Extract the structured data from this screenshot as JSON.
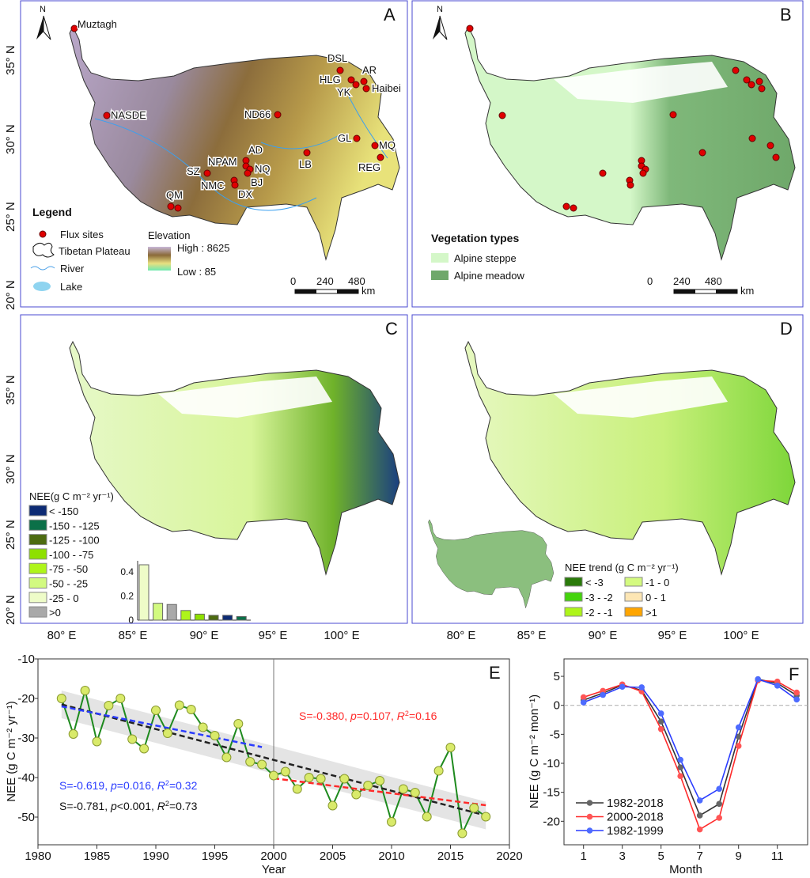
{
  "colors": {
    "frame": "#3b3bd6",
    "flux": "#e00000",
    "steppe": "#d4f7c8",
    "meadow": "#6fa86a",
    "green_line": "#1e8a1e",
    "dot": "#d9ea6a",
    "black": "#333333",
    "red": "#ff2a2a",
    "blue": "#2a3cff"
  },
  "lat_labels": [
    "35° N",
    "30° N",
    "25° N",
    "20° N"
  ],
  "lon_labels": [
    "80° E",
    "85° E",
    "90° E",
    "95° E",
    "100° E"
  ],
  "panelA": {
    "letter": "A",
    "north": "N",
    "sites": [
      "Muztagh",
      "DSL",
      "HLG",
      "AR",
      "YK",
      "Haibei",
      "NASDE",
      "ND66",
      "GL",
      "MQ",
      "REG",
      "LB",
      "AD",
      "NPAM",
      "NQ",
      "SZ",
      "BJ",
      "NMC",
      "DX",
      "QM"
    ],
    "legend": {
      "title": "Legend",
      "flux": "Flux sites",
      "plateau": "Tibetan Plateau",
      "river": "River",
      "lake": "Lake",
      "elev_title": "Elevation",
      "high": "High : 8625",
      "low": "Low : 85"
    },
    "scale": {
      "t0": "0",
      "t1": "240",
      "t2": "480",
      "unit": "km"
    }
  },
  "panelB": {
    "letter": "B",
    "north": "N",
    "legend_title": "Vegetation types",
    "steppe": "Alpine steppe",
    "meadow": "Alpine meadow",
    "scale": {
      "t0": "0",
      "t1": "240",
      "t2": "480",
      "unit": "km"
    }
  },
  "panelC": {
    "letter": "C",
    "legend_title": "NEE(g C m⁻² yr⁻¹)",
    "classes": [
      {
        "label": "< -150",
        "color": "#0d2b74"
      },
      {
        "label": "-150 - -125",
        "color": "#0b7048"
      },
      {
        "label": "-125 - -100",
        "color": "#4d6b10"
      },
      {
        "label": "-100 - -75",
        "color": "#8ee000"
      },
      {
        "label": "-75 - -50",
        "color": "#aef51a"
      },
      {
        "label": "-50 - -25",
        "color": "#d2fa80"
      },
      {
        "label": "-25 - 0",
        "color": "#eefcc8"
      },
      {
        "label": ">0",
        "color": "#a9a9a9"
      }
    ],
    "histogram": {
      "yticks": [
        "0",
        "0.2",
        "0.4"
      ],
      "bars": [
        {
          "class": "-25 - 0",
          "value": 0.46,
          "color": "#eefcc8"
        },
        {
          "class": "-50 - -25",
          "value": 0.14,
          "color": "#d2fa80"
        },
        {
          "class": ">0",
          "value": 0.13,
          "color": "#a9a9a9"
        },
        {
          "class": "-75 - -50",
          "value": 0.08,
          "color": "#aef51a"
        },
        {
          "class": "-100 - -75",
          "value": 0.05,
          "color": "#8ee000"
        },
        {
          "class": "-125 - -100",
          "value": 0.04,
          "color": "#4d6b10"
        },
        {
          "class": "< -150",
          "value": 0.04,
          "color": "#0d2b74"
        },
        {
          "class": "-150 - -125",
          "value": 0.03,
          "color": "#0b7048"
        }
      ]
    }
  },
  "panelD": {
    "letter": "D",
    "legend_title": "NEE trend (g C m⁻² yr⁻¹)",
    "classes": [
      {
        "label": "< -3",
        "color": "#2a7a0a"
      },
      {
        "label": "-3 - -2",
        "color": "#44d40c"
      },
      {
        "label": "-2 - -1",
        "color": "#aef51a"
      },
      {
        "label": "-1 - 0",
        "color": "#d4fa80"
      },
      {
        "label": "0 - 1",
        "color": "#fde6b4"
      },
      {
        "label": ">1",
        "color": "#ffa500"
      }
    ]
  },
  "chart_data": [
    {
      "panel": "E",
      "type": "line",
      "xlabel": "Year",
      "ylabel": "NEE (g C m⁻² yr⁻¹)",
      "xlim": [
        1980,
        2020
      ],
      "ylim": [
        -57,
        -10
      ],
      "xticks": [
        "1980",
        "1985",
        "1990",
        "1995",
        "2000",
        "2005",
        "2010",
        "2015",
        "2020"
      ],
      "yticks": [
        "-10",
        "-20",
        "-30",
        "-40",
        "-50"
      ],
      "x": [
        1982,
        1983,
        1984,
        1985,
        1986,
        1987,
        1988,
        1989,
        1990,
        1991,
        1992,
        1993,
        1994,
        1995,
        1996,
        1997,
        1998,
        1999,
        2000,
        2001,
        2002,
        2003,
        2004,
        2005,
        2006,
        2007,
        2008,
        2009,
        2010,
        2011,
        2012,
        2013,
        2014,
        2015,
        2016,
        2017,
        2018
      ],
      "values": [
        -20,
        -29,
        -18,
        -30.9,
        -21.8,
        -20,
        -30.3,
        -32.7,
        -23,
        -28.8,
        -21.7,
        -22.8,
        -27.3,
        -29.4,
        -34.9,
        -26.4,
        -36,
        -36.7,
        -39.5,
        -38.5,
        -42.9,
        -40,
        -40.3,
        -47.1,
        -40.3,
        -44.3,
        -42,
        -40.8,
        -51.2,
        -42.9,
        -43.8,
        -49.9,
        -38.3,
        -32.4,
        -54.1,
        -47.7,
        -49.9
      ],
      "trends": [
        {
          "name": "1982-2018",
          "x": [
            1982,
            2018
          ],
          "y": [
            -21.5,
            -49.6
          ],
          "color": "#222222",
          "band": 3.5,
          "annotation": {
            "S": "S=-0.781, ",
            "p": "p",
            "pv": "<0.001, ",
            "R": "R",
            "r2": "=0.73"
          }
        },
        {
          "name": "1982-1999",
          "x": [
            1982,
            1999
          ],
          "y": [
            -22,
            -32.3
          ],
          "color": "#2a3cff",
          "annotation": {
            "S": "S=-0.619, ",
            "p": "p",
            "pv": "=0.016, ",
            "R": "R",
            "r2": "=0.32"
          }
        },
        {
          "name": "2000-2018",
          "x": [
            2000,
            2018
          ],
          "y": [
            -40.2,
            -47
          ],
          "color": "#ff2a2a",
          "annotation": {
            "S": "S=-0.380, ",
            "p": "p",
            "pv": "=0.107, ",
            "R": "R",
            "r2": "=0.16"
          }
        }
      ],
      "divider_year": 2000,
      "letter": "E"
    },
    {
      "panel": "F",
      "type": "line",
      "xlabel": "Month",
      "ylabel": "NEE (g C m⁻² mon⁻¹)",
      "xlim": [
        0.5,
        12.5
      ],
      "ylim": [
        -24,
        8
      ],
      "xticks": [
        "1",
        "3",
        "5",
        "7",
        "9",
        "11"
      ],
      "yticks": [
        "5",
        "0",
        "-5",
        "-10",
        "-15",
        "-20"
      ],
      "x": [
        1,
        2,
        3,
        4,
        5,
        6,
        7,
        8,
        9,
        10,
        11,
        12
      ],
      "series": [
        {
          "name": "1982-2018",
          "color": "#333333",
          "marker": "#666666",
          "values": [
            0.9,
            2.1,
            3.5,
            2.6,
            -2.8,
            -10.7,
            -19,
            -17,
            -5.4,
            4.5,
            3.8,
            1.7
          ]
        },
        {
          "name": "2000-2018",
          "color": "#ff2a2a",
          "marker": "#ff5555",
          "values": [
            1.4,
            2.5,
            3.6,
            2.4,
            -4.1,
            -12.2,
            -21.4,
            -19.4,
            -7.0,
            4.3,
            4.1,
            2.2
          ]
        },
        {
          "name": "1982-1999",
          "color": "#2a3cff",
          "marker": "#4d6bff",
          "values": [
            0.5,
            1.8,
            3.2,
            3.1,
            -1.4,
            -9.4,
            -16.4,
            -14.4,
            -3.8,
            4.5,
            3.4,
            1.0
          ]
        }
      ],
      "legend_position": "bottom-left",
      "letter": "F"
    }
  ]
}
